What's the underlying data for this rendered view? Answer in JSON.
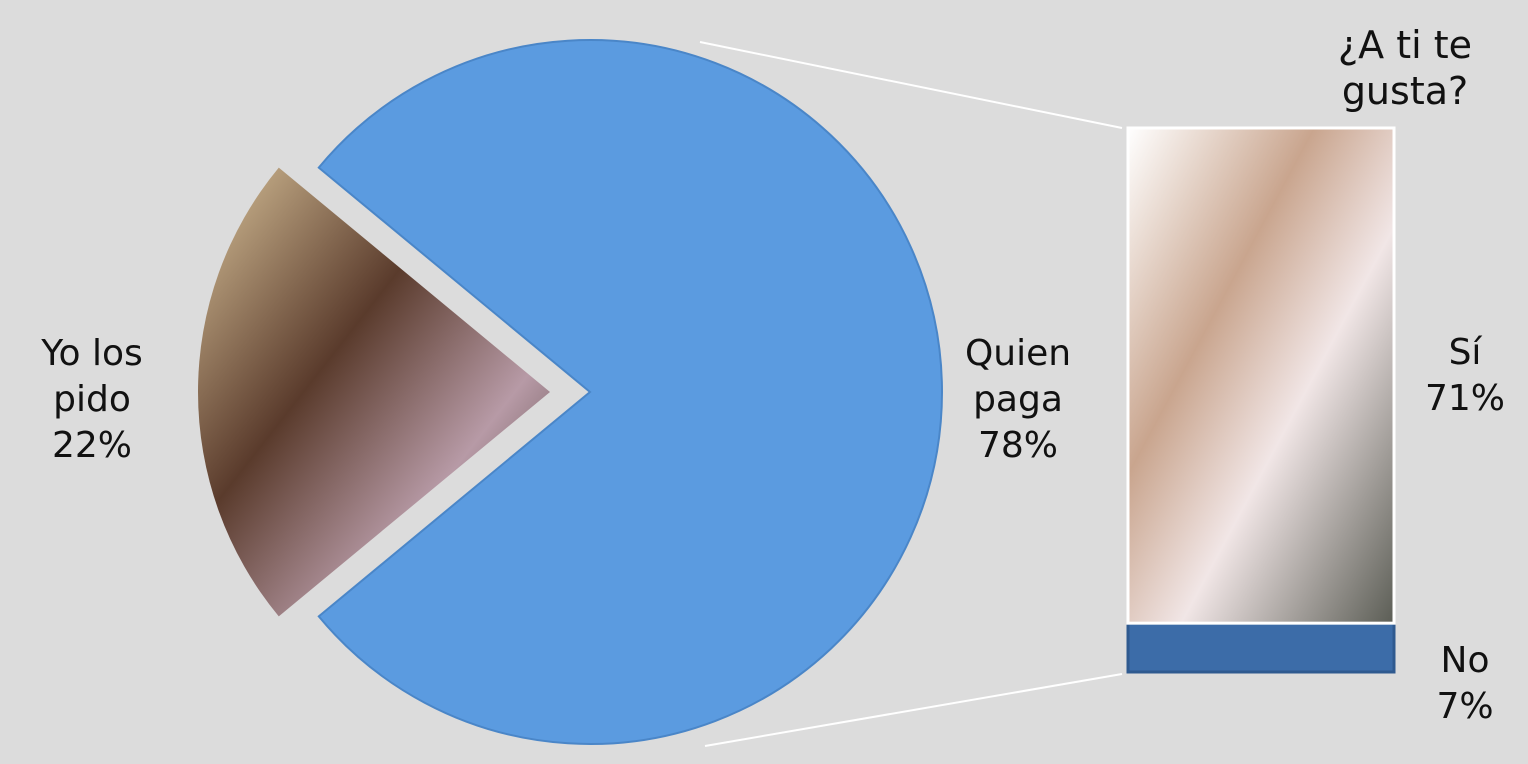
{
  "chart_data": [
    {
      "type": "pie",
      "categories": [
        "Yo los pido",
        "Quien paga"
      ],
      "values": [
        22,
        78
      ],
      "value_labels": [
        "22%",
        "78%"
      ],
      "colors": [
        "#8a6a55",
        "#5b9be0"
      ]
    },
    {
      "type": "bar",
      "title": "¿A ti te gusta?",
      "categories": [
        "Sí",
        "No"
      ],
      "values": [
        71,
        7
      ],
      "value_labels": [
        "71%",
        "7%"
      ],
      "colors": [
        "#e9e4df",
        "#3c6ca8"
      ]
    }
  ]
}
